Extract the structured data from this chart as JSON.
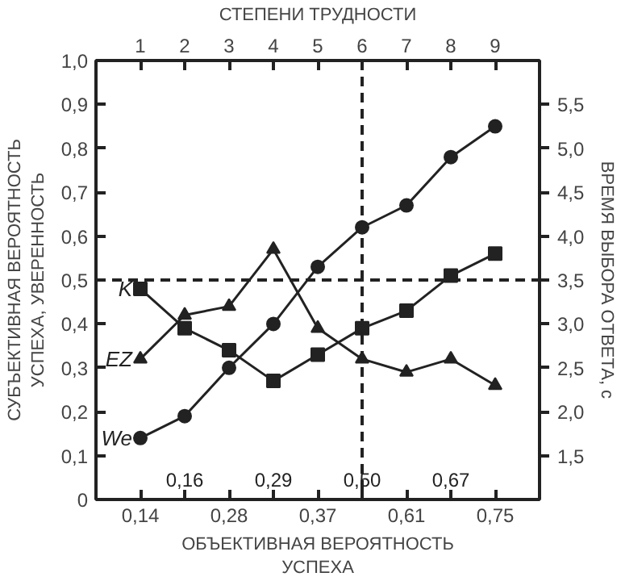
{
  "chart_data": {
    "type": "line",
    "x2label": "СТЕПЕНИ ТРУДНОСТИ",
    "xlabel": "ОБЪЕКТИВНАЯ ВЕРОЯТНОСТЬ\nУСПЕХА",
    "ylabel": "СУБЪЕКТИВНАЯ ВЕРОЯТНОСТЬ\nУСПЕХА, УВЕРЕННОСТЬ",
    "y2label": "ВРЕМЯ ВЫБОРА ОТВЕТА, с",
    "categories": [
      "0,14",
      "0,16",
      "0,28",
      "0,29",
      "0,37",
      "0,50",
      "0,61",
      "0,67",
      "0,75"
    ],
    "x2lim": [
      0,
      10
    ],
    "x2ticks": [
      1,
      2,
      3,
      4,
      5,
      6,
      7,
      8,
      9
    ],
    "ylim": [
      0,
      1
    ],
    "yticks": [
      {
        "value": 0,
        "label": "0"
      },
      {
        "value": 0.1,
        "label": "0,1"
      },
      {
        "value": 0.2,
        "label": "0,2"
      },
      {
        "value": 0.3,
        "label": "0,3"
      },
      {
        "value": 0.4,
        "label": "0,4"
      },
      {
        "value": 0.5,
        "label": "0,5"
      },
      {
        "value": 0.6,
        "label": "0,6"
      },
      {
        "value": 0.7,
        "label": "0,7"
      },
      {
        "value": 0.8,
        "label": "0,8"
      },
      {
        "value": 0.9,
        "label": "0,9"
      },
      {
        "value": 1,
        "label": "1,0"
      }
    ],
    "y2lim": [
      1,
      6
    ],
    "y2ticks": [
      {
        "value": 1.5,
        "label": "1,5"
      },
      {
        "value": 2,
        "label": "2,0"
      },
      {
        "value": 2.5,
        "label": "2,5"
      },
      {
        "value": 3,
        "label": "3,0"
      },
      {
        "value": 3.5,
        "label": "3,5"
      },
      {
        "value": 4,
        "label": "4,0"
      },
      {
        "value": 4.5,
        "label": "4,5"
      },
      {
        "value": 5,
        "label": "5,0"
      },
      {
        "value": 5.5,
        "label": "5,5"
      }
    ],
    "series": [
      {
        "name": "K",
        "color": "#222222",
        "marker": "square",
        "values": [
          0.48,
          0.39,
          0.34,
          0.27,
          0.33,
          0.39,
          0.43,
          0.51,
          0.56
        ]
      },
      {
        "name": "EZ",
        "color": "#222222",
        "marker": "triangle",
        "values": [
          0.32,
          0.42,
          0.44,
          0.57,
          0.39,
          0.32,
          0.29,
          0.32,
          0.26
        ]
      },
      {
        "name": "We",
        "color": "#222222",
        "marker": "circle",
        "values": [
          0.14,
          0.19,
          0.3,
          0.4,
          0.53,
          0.62,
          0.67,
          0.78,
          0.85
        ]
      }
    ],
    "ref_lines": [
      {
        "axis": "y",
        "value": 0.5,
        "line_style": "dashed",
        "color": "#222222"
      },
      {
        "axis": "x",
        "value": "0,50",
        "line_style": "dashed",
        "color": "#222222"
      }
    ],
    "grid": false,
    "legend": "left"
  }
}
